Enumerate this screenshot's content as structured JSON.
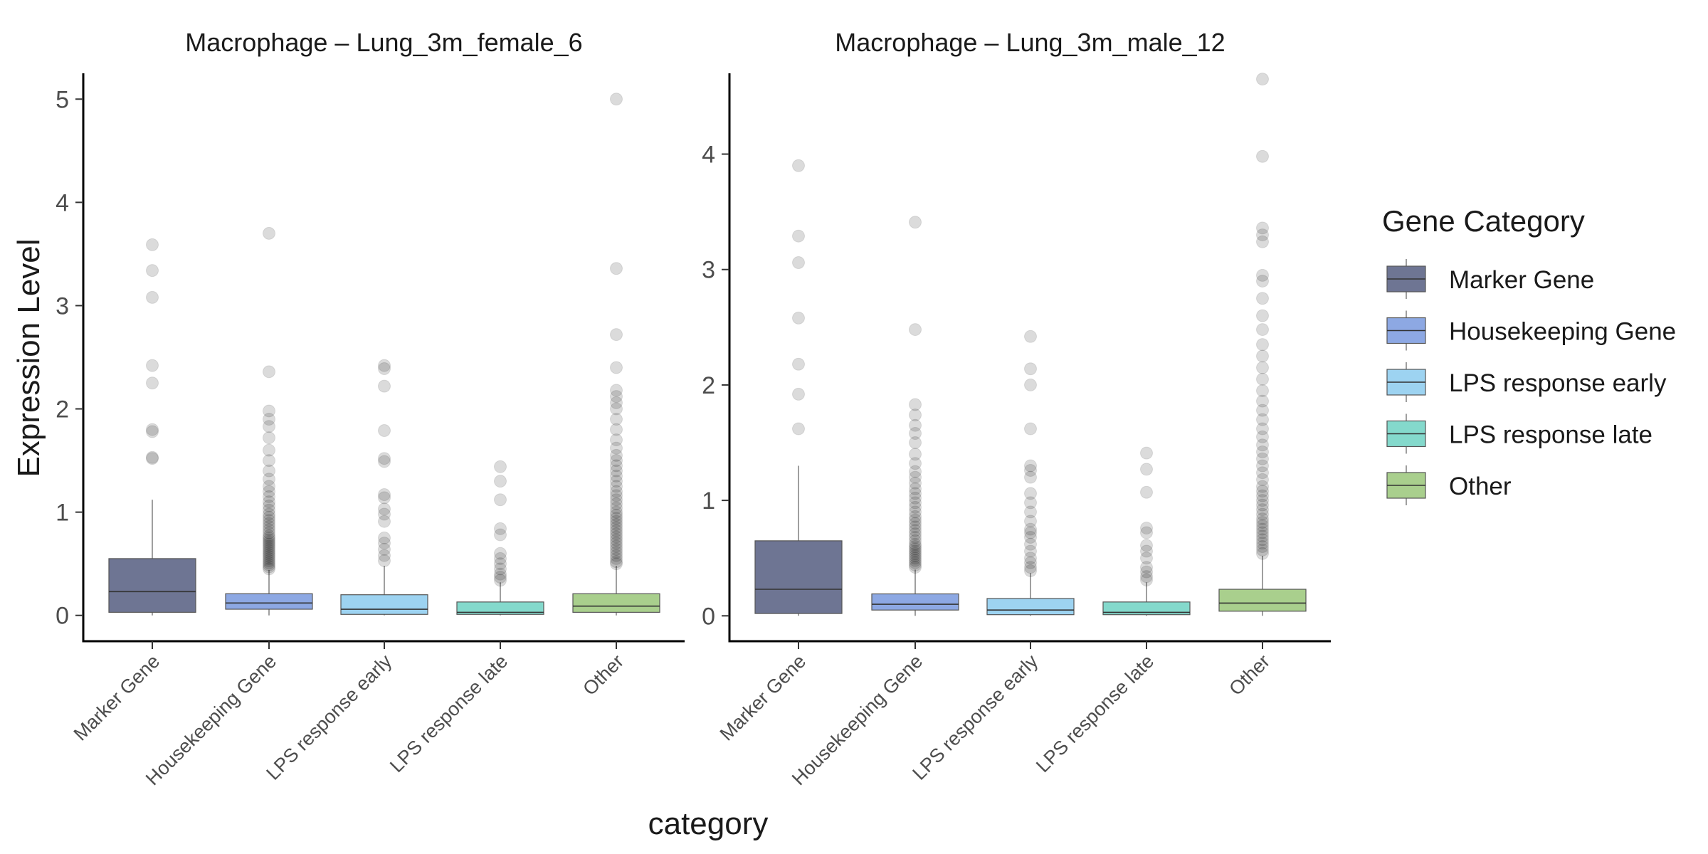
{
  "chart_data": {
    "type": "boxplot",
    "xlabel": "category",
    "ylabel": "Expression Level",
    "legend": {
      "title": "Gene Category",
      "placement": "right",
      "items": [
        {
          "label": "Marker Gene",
          "color": "#6e7593"
        },
        {
          "label": "Housekeeping Gene",
          "color": "#8da8e3"
        },
        {
          "label": "LPS response early",
          "color": "#9dd3f1"
        },
        {
          "label": "LPS response late",
          "color": "#84d9cc"
        },
        {
          "label": "Other",
          "color": "#a9cf8d"
        }
      ]
    },
    "categories": [
      "Marker Gene",
      "Housekeeping Gene",
      "LPS response early",
      "LPS response late",
      "Other"
    ],
    "panels": [
      {
        "title": "Macrophage – Lung_3m_female_6",
        "ylim": [
          -0.25,
          5.25
        ],
        "yticks": [
          0,
          1,
          2,
          3,
          4,
          5
        ],
        "boxes": [
          {
            "category": "Marker Gene",
            "min": 0.0,
            "q1": 0.03,
            "median": 0.23,
            "q3": 0.55,
            "max": 1.12,
            "outliers": [
              1.52,
              1.53,
              1.78,
              1.8,
              2.25,
              2.42,
              3.08,
              3.34,
              3.59
            ]
          },
          {
            "category": "Housekeeping Gene",
            "min": 0.0,
            "q1": 0.06,
            "median": 0.12,
            "q3": 0.21,
            "max": 0.44,
            "outliers": [
              0.45,
              0.47,
              0.49,
              0.51,
              0.53,
              0.55,
              0.57,
              0.59,
              0.61,
              0.63,
              0.65,
              0.67,
              0.69,
              0.71,
              0.73,
              0.75,
              0.77,
              0.8,
              0.83,
              0.86,
              0.89,
              0.92,
              0.95,
              0.98,
              1.02,
              1.06,
              1.1,
              1.15,
              1.2,
              1.25,
              1.32,
              1.4,
              1.5,
              1.6,
              1.72,
              1.83,
              1.9,
              1.98,
              2.36,
              3.7
            ]
          },
          {
            "category": "LPS response early",
            "min": 0.0,
            "q1": 0.01,
            "median": 0.06,
            "q3": 0.2,
            "max": 0.48,
            "outliers": [
              0.53,
              0.58,
              0.64,
              0.7,
              0.75,
              0.91,
              0.98,
              1.03,
              1.14,
              1.17,
              1.49,
              1.52,
              1.79,
              2.22,
              2.39,
              2.42
            ]
          },
          {
            "category": "LPS response late",
            "min": 0.0,
            "q1": 0.01,
            "median": 0.03,
            "q3": 0.13,
            "max": 0.32,
            "outliers": [
              0.34,
              0.37,
              0.4,
              0.45,
              0.5,
              0.55,
              0.6,
              0.78,
              0.84,
              1.12,
              1.3,
              1.44
            ]
          },
          {
            "category": "Other",
            "min": 0.0,
            "q1": 0.03,
            "median": 0.09,
            "q3": 0.21,
            "max": 0.48,
            "outliers": [
              0.5,
              0.52,
              0.55,
              0.58,
              0.61,
              0.64,
              0.67,
              0.7,
              0.73,
              0.76,
              0.79,
              0.82,
              0.85,
              0.88,
              0.91,
              0.94,
              0.97,
              1.0,
              1.04,
              1.08,
              1.12,
              1.16,
              1.2,
              1.25,
              1.3,
              1.35,
              1.4,
              1.45,
              1.5,
              1.55,
              1.62,
              1.7,
              1.8,
              1.9,
              2.0,
              2.06,
              2.12,
              2.18,
              2.4,
              2.72,
              3.36,
              5.0
            ]
          }
        ]
      },
      {
        "title": "Macrophage – Lung_3m_male_12",
        "ylim": [
          -0.22,
          4.7
        ],
        "yticks": [
          0,
          1,
          2,
          3,
          4
        ],
        "boxes": [
          {
            "category": "Marker Gene",
            "min": 0.0,
            "q1": 0.02,
            "median": 0.23,
            "q3": 0.65,
            "max": 1.3,
            "outliers": [
              1.62,
              1.92,
              2.18,
              2.58,
              3.06,
              3.29,
              3.9
            ]
          },
          {
            "category": "Housekeeping Gene",
            "min": 0.0,
            "q1": 0.05,
            "median": 0.1,
            "q3": 0.19,
            "max": 0.4,
            "outliers": [
              0.42,
              0.44,
              0.46,
              0.48,
              0.5,
              0.52,
              0.54,
              0.56,
              0.58,
              0.6,
              0.62,
              0.65,
              0.68,
              0.71,
              0.74,
              0.77,
              0.8,
              0.83,
              0.86,
              0.9,
              0.94,
              0.98,
              1.02,
              1.06,
              1.1,
              1.15,
              1.2,
              1.25,
              1.32,
              1.4,
              1.5,
              1.58,
              1.65,
              1.74,
              1.83,
              2.48,
              3.41
            ]
          },
          {
            "category": "LPS response early",
            "min": 0.0,
            "q1": 0.01,
            "median": 0.05,
            "q3": 0.15,
            "max": 0.37,
            "outliers": [
              0.39,
              0.42,
              0.46,
              0.5,
              0.56,
              0.62,
              0.68,
              0.72,
              0.75,
              0.82,
              0.9,
              0.98,
              1.06,
              1.2,
              1.26,
              1.3,
              1.62,
              2.0,
              2.14,
              2.42
            ]
          },
          {
            "category": "LPS response late",
            "min": 0.0,
            "q1": 0.01,
            "median": 0.03,
            "q3": 0.12,
            "max": 0.29,
            "outliers": [
              0.31,
              0.34,
              0.38,
              0.42,
              0.5,
              0.56,
              0.61,
              0.72,
              0.76,
              1.07,
              1.27,
              1.41
            ]
          },
          {
            "category": "Other",
            "min": 0.0,
            "q1": 0.04,
            "median": 0.11,
            "q3": 0.23,
            "max": 0.52,
            "outliers": [
              0.54,
              0.57,
              0.6,
              0.63,
              0.66,
              0.69,
              0.72,
              0.75,
              0.78,
              0.81,
              0.84,
              0.88,
              0.92,
              0.96,
              1.0,
              1.04,
              1.08,
              1.12,
              1.18,
              1.24,
              1.3,
              1.36,
              1.42,
              1.48,
              1.55,
              1.62,
              1.7,
              1.78,
              1.86,
              1.95,
              2.05,
              2.15,
              2.25,
              2.35,
              2.48,
              2.6,
              2.75,
              2.9,
              2.95,
              3.24,
              3.3,
              3.36,
              3.98,
              4.65
            ]
          }
        ]
      }
    ]
  }
}
